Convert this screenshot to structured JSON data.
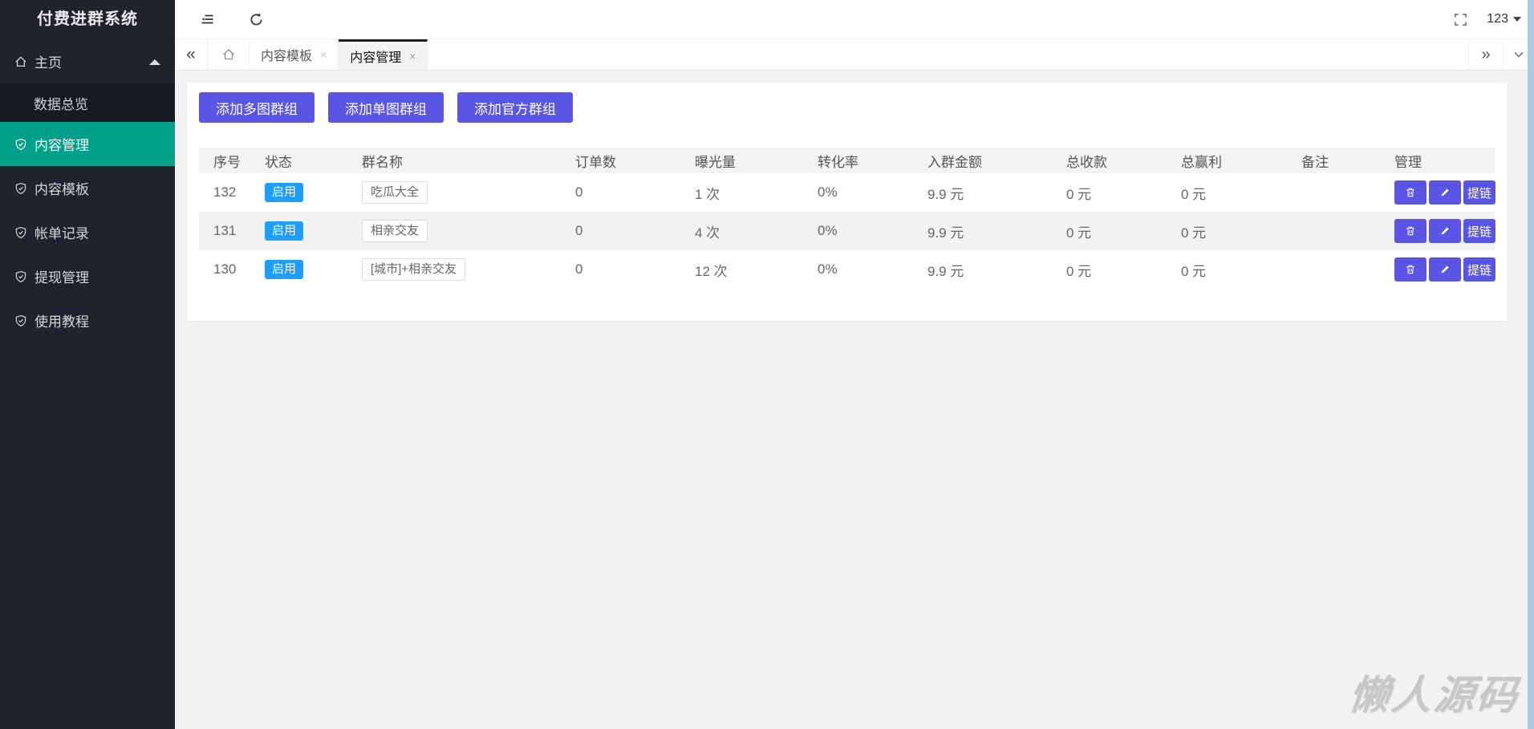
{
  "app": {
    "title": "付费进群系统"
  },
  "sidebar": {
    "items": [
      {
        "label": "主页"
      },
      {
        "label": "数据总览"
      },
      {
        "label": "内容管理"
      },
      {
        "label": "内容模板"
      },
      {
        "label": "帐单记录"
      },
      {
        "label": "提现管理"
      },
      {
        "label": "使用教程"
      }
    ]
  },
  "topbar": {
    "user": "123"
  },
  "tabs": {
    "items": [
      {
        "label": "内容模板",
        "close": "×"
      },
      {
        "label": "内容管理",
        "close": "×"
      }
    ]
  },
  "toolbar": {
    "buttons": [
      {
        "label": "添加多图群组"
      },
      {
        "label": "添加单图群组"
      },
      {
        "label": "添加官方群组"
      }
    ]
  },
  "table": {
    "headers": [
      "序号",
      "状态",
      "群名称",
      "订单数",
      "曝光量",
      "转化率",
      "入群金额",
      "总收款",
      "总赢利",
      "备注",
      "管理"
    ],
    "rows": [
      {
        "id": "132",
        "status": "启用",
        "name": "吃瓜大全",
        "orders": "0",
        "exposure": "1 次",
        "rate": "0%",
        "amount": "9.9 元",
        "income": "0 元",
        "profit": "0 元",
        "note": ""
      },
      {
        "id": "131",
        "status": "启用",
        "name": "相亲交友",
        "orders": "0",
        "exposure": "4 次",
        "rate": "0%",
        "amount": "9.9 元",
        "income": "0 元",
        "profit": "0 元",
        "note": ""
      },
      {
        "id": "130",
        "status": "启用",
        "name": "[城市]+相亲交友",
        "orders": "0",
        "exposure": "12 次",
        "rate": "0%",
        "amount": "9.9 元",
        "income": "0 元",
        "profit": "0 元",
        "note": ""
      }
    ],
    "action_link_label": "提链"
  },
  "icons": {
    "sidebar_parent": "home-icon",
    "sidebar_item": "shield-check-icon",
    "topbar_left": [
      "collapse-menu-icon",
      "refresh-icon"
    ],
    "topbar_right": [
      "fullscreen-icon",
      "caret-down-icon"
    ],
    "row_actions": [
      "trash-icon",
      "pencil-icon"
    ]
  },
  "colors": {
    "sidebar_bg": "#20232d",
    "sidebar_submenu_bg": "#171a22",
    "active_green": "#00a08b",
    "accent_purple": "#5b55e5",
    "badge_blue": "#1e9fff",
    "page_bg": "#f2f2f2"
  },
  "watermark": {
    "text": "懒人源码"
  }
}
